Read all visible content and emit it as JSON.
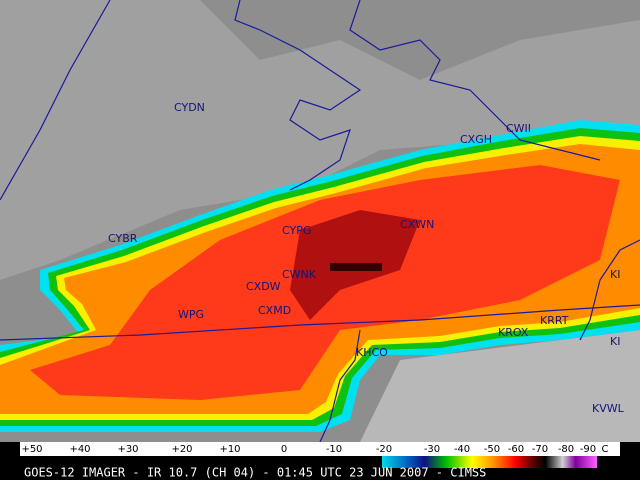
{
  "map": {
    "stations": [
      "CYDN",
      "CXGH",
      "CWII",
      "CYPG",
      "CXWN",
      "CYBR",
      "CWNK",
      "CXDW",
      "CXMD",
      "WPG",
      "KHCO",
      "KROX",
      "KRRT",
      "KI",
      "KI",
      "KVWL"
    ],
    "colorbar": {
      "labels": [
        "+50",
        "+40",
        "+30",
        "+20",
        "+10",
        "0",
        "-10",
        "-20",
        "-30",
        "-40",
        "-50",
        "-60",
        "-70",
        "-80",
        "-90"
      ],
      "unit": "C"
    },
    "caption": "GOES-12 IMAGER - IR 10.7 (CH 04) - 01:45 UTC 23 JUN 2007 - CIMSS"
  }
}
